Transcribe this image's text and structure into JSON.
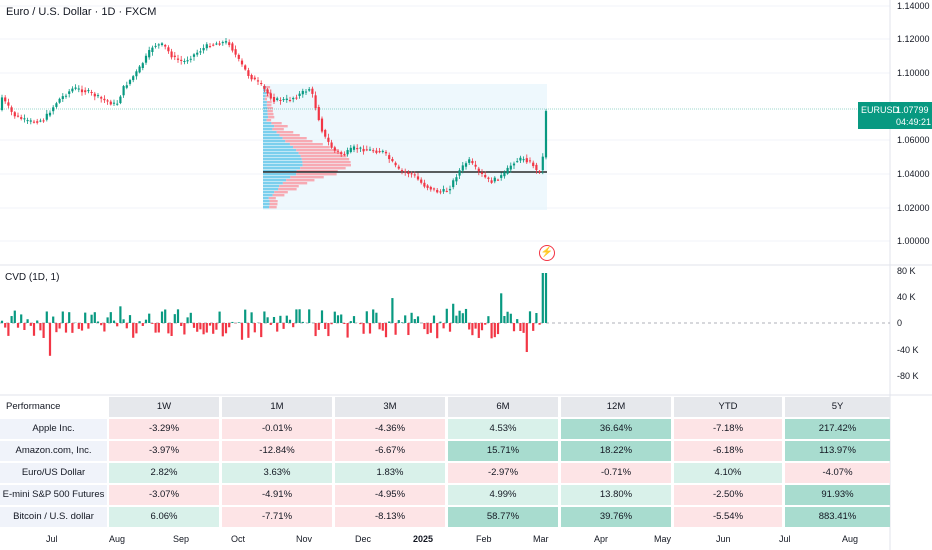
{
  "chart_header": {
    "title": "Euro / U.S. Dollar · 1D · FXCM"
  },
  "price_axis": {
    "ticks": [
      "1.14000",
      "1.12000",
      "1.10000",
      "1.06000",
      "1.04000",
      "1.02000",
      "1.00000"
    ]
  },
  "price_badge": {
    "symbol": "EURUSD",
    "price": "1.07799",
    "countdown": "04:49:21"
  },
  "cvd": {
    "label": "CVD (1D, 1)",
    "ticks": [
      "80 K",
      "40 K",
      "0",
      "-40 K",
      "-80 K"
    ]
  },
  "time_axis": {
    "labels": [
      "Jul",
      "Aug",
      "Sep",
      "Oct",
      "Nov",
      "Dec",
      "2025",
      "Feb",
      "Mar",
      "Apr",
      "May",
      "Jun",
      "Jul",
      "Aug"
    ]
  },
  "performance": {
    "header": "Performance",
    "columns": [
      "1W",
      "1M",
      "3M",
      "6M",
      "12M",
      "YTD",
      "5Y"
    ],
    "rows": [
      {
        "name": "Apple Inc.",
        "values": [
          "-3.29%",
          "-0.01%",
          "-4.36%",
          "4.53%",
          "36.64%",
          "-7.18%",
          "217.42%"
        ]
      },
      {
        "name": "Amazon.com, Inc.",
        "values": [
          "-3.97%",
          "-12.84%",
          "-6.67%",
          "15.71%",
          "18.22%",
          "-6.18%",
          "113.97%"
        ]
      },
      {
        "name": "Euro/US Dollar",
        "values": [
          "2.82%",
          "3.63%",
          "1.83%",
          "-2.97%",
          "-0.71%",
          "4.10%",
          "-4.07%"
        ]
      },
      {
        "name": "E-mini S&P 500 Futures",
        "values": [
          "-3.07%",
          "-4.91%",
          "-4.95%",
          "4.99%",
          "13.80%",
          "-2.50%",
          "91.93%"
        ]
      },
      {
        "name": "Bitcoin / U.S. dollar",
        "values": [
          "6.06%",
          "-7.71%",
          "-8.13%",
          "58.77%",
          "39.76%",
          "-5.54%",
          "883.41%"
        ]
      }
    ]
  },
  "colors": {
    "up": "#089981",
    "down": "#f23645",
    "pos_cell": "#d9f1ea",
    "neg_cell": "#fde4e6",
    "strong_pos": "#a8dccf"
  }
}
